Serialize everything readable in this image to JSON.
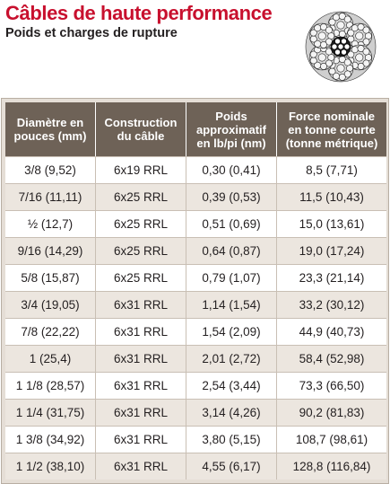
{
  "header": {
    "title": "Câbles de haute performance",
    "subtitle": "Poids et charges de rupture"
  },
  "colors": {
    "title": "#c8102e",
    "header_bg": "#6e6257",
    "row_alt": "#ece6df",
    "frame": "#e5ded6"
  },
  "table": {
    "headers": [
      [
        "Diamètre en",
        "pouces (mm)"
      ],
      [
        "Construction",
        "du câble"
      ],
      [
        "Poids",
        "approximatif",
        "en lb/pi (nm)"
      ],
      [
        "Force nominale",
        "en tonne courte",
        "(tonne métrique)"
      ]
    ],
    "rows": [
      [
        "3/8 (9,52)",
        "6x19 RRL",
        "0,30 (0,41)",
        "8,5 (7,71)"
      ],
      [
        "7/16 (11,11)",
        "6x25 RRL",
        "0,39 (0,53)",
        "11,5 (10,43)"
      ],
      [
        "½ (12,7)",
        "6x25 RRL",
        "0,51 (0,69)",
        "15,0 (13,61)"
      ],
      [
        "9/16 (14,29)",
        "6x25 RRL",
        "0,64 (0,87)",
        "19,0 (17,24)"
      ],
      [
        "5/8 (15,87)",
        "6x25 RRL",
        "0,79 (1,07)",
        "23,3 (21,14)"
      ],
      [
        "3/4 (19,05)",
        "6x31 RRL",
        "1,14 (1,54)",
        "33,2 (30,12)"
      ],
      [
        "7/8 (22,22)",
        "6x31 RRL",
        "1,54 (2,09)",
        "44,9 (40,73)"
      ],
      [
        "1 (25,4)",
        "6x31 RRL",
        "2,01 (2,72)",
        "58,4 (52,98)"
      ],
      [
        "1 1/8 (28,57)",
        "6x31 RRL",
        "2,54 (3,44)",
        "73,3 (66,50)"
      ],
      [
        "1 1/4 (31,75)",
        "6x31 RRL",
        "3,14 (4,26)",
        "90,2 (81,83)"
      ],
      [
        "1 3/8 (34,92)",
        "6x31 RRL",
        "3,80 (5,15)",
        "108,7 (98,61)"
      ],
      [
        "1 1/2 (38,10)",
        "6x31 RRL",
        "4,55 (6,17)",
        "128,8 (116,84)"
      ]
    ]
  }
}
